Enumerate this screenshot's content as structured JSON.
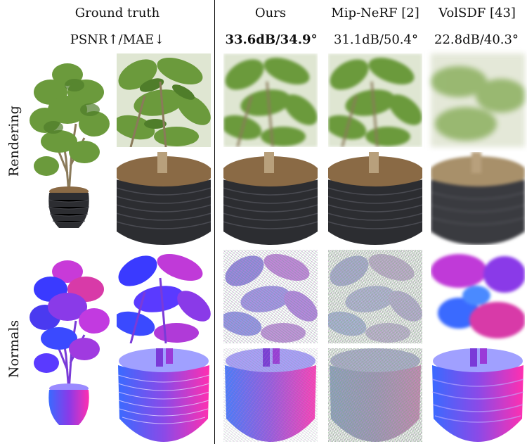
{
  "headers": {
    "ground_truth": "Ground truth",
    "ours": "Ours",
    "mipnerf": "Mip-NeRF [2]",
    "volsdf": "VolSDF [43]"
  },
  "metrics": {
    "label": "PSNR↑/MAE↓",
    "ours": "33.6dB/34.9°",
    "mipnerf": "31.1dB/50.4°",
    "volsdf": "22.8dB/40.3°"
  },
  "row_labels": {
    "rendering": "Rendering",
    "normals": "Normals"
  },
  "colors": {
    "leaf_green": "#6b9a3c",
    "pot_dark": "#2c2d31",
    "soil": "#8a6a45",
    "normal_blue": "#3a3aff",
    "normal_purple": "#b03ad8",
    "normal_pink": "#ff2fb0"
  }
}
